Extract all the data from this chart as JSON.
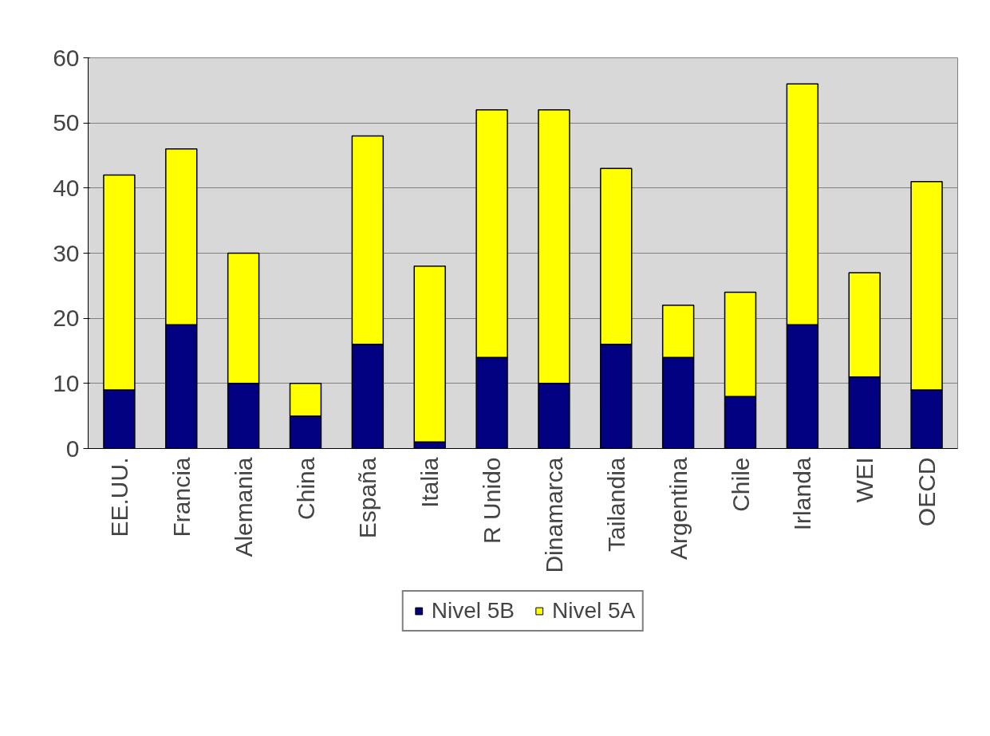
{
  "chart_data": {
    "type": "bar",
    "stacked": true,
    "categories": [
      "EE.UU.",
      "Francia",
      "Alemania",
      "China",
      "España",
      "Italia",
      "R Unido",
      "Dinamarca",
      "Tailandia",
      "Argentina",
      "Chile",
      "Irlanda",
      "WEI",
      "OECD"
    ],
    "series": [
      {
        "name": "Nivel 5B",
        "color": "#000080",
        "values": [
          9,
          19,
          10,
          5,
          16,
          1,
          14,
          10,
          16,
          14,
          8,
          19,
          11,
          9
        ]
      },
      {
        "name": "Nivel 5A",
        "color": "#ffff00",
        "values": [
          33,
          27,
          20,
          5,
          32,
          27,
          38,
          42,
          27,
          8,
          16,
          37,
          16,
          32
        ]
      }
    ],
    "ylim": [
      0,
      60
    ],
    "yticks": [
      0,
      10,
      20,
      30,
      40,
      50,
      60
    ],
    "grid": "y",
    "legend": "bottom"
  }
}
